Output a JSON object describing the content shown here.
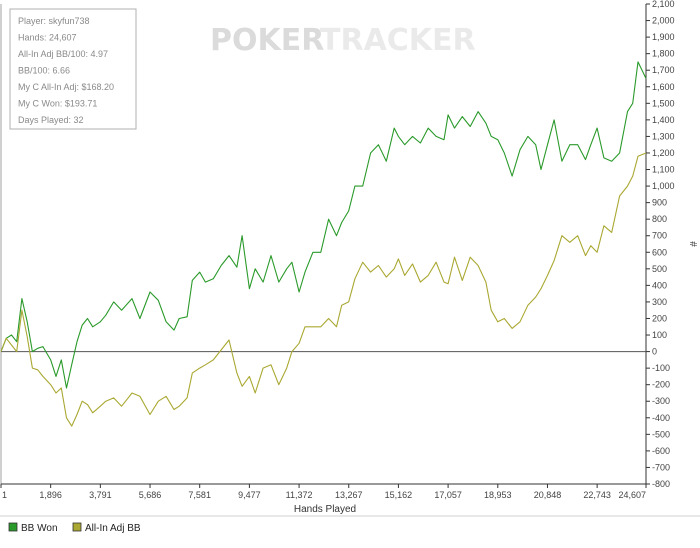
{
  "watermark": {
    "brand_left": "POKER",
    "brand_right": "TRACKER"
  },
  "stats_box": {
    "lines": [
      "Player: skyfun738",
      "Hands: 24,607",
      "All-In Adj BB/100: 4.97",
      "BB/100: 6.66",
      "My C All-In Adj: $168.20",
      "My C Won: $193.71",
      "Days Played: 32"
    ]
  },
  "legend": {
    "items": [
      {
        "label": "BB Won",
        "color": "#2a9a2a"
      },
      {
        "label": "All-In Adj BB",
        "color": "#aaa832"
      }
    ]
  },
  "chart_data": {
    "type": "line",
    "title": "",
    "xlabel": "Hands Played",
    "ylabel": "#",
    "xlim": [
      1,
      24607
    ],
    "ylim": [
      -800,
      2100
    ],
    "x_ticks": [
      1,
      1896,
      3791,
      5686,
      7581,
      9477,
      11372,
      13267,
      15162,
      17057,
      18953,
      20848,
      22743,
      24607
    ],
    "x_tick_labels": [
      "1",
      "1,896",
      "3,791",
      "5,686",
      "7,581",
      "9,477",
      "11,372",
      "13,267",
      "15,162",
      "17,057",
      "18,953",
      "20,848",
      "22,743",
      "24,607"
    ],
    "y_ticks": [
      -800,
      -700,
      -600,
      -500,
      -400,
      -300,
      -200,
      -100,
      0,
      100,
      200,
      300,
      400,
      500,
      600,
      700,
      800,
      900,
      1000,
      1100,
      1200,
      1300,
      1400,
      1500,
      1600,
      1700,
      1800,
      1900,
      2000,
      2100
    ],
    "y_tick_labels": [
      "-800",
      "-700",
      "-600",
      "-500",
      "-400",
      "-300",
      "-200",
      "-100",
      "0",
      "100",
      "200",
      "300",
      "400",
      "500",
      "600",
      "700",
      "800",
      "900",
      "1,000",
      "1,100",
      "1,200",
      "1,300",
      "1,400",
      "1,500",
      "1,600",
      "1,700",
      "1,800",
      "1,900",
      "2,000",
      "2,100"
    ],
    "grid": false,
    "legend_position": "bottom-left",
    "series": [
      {
        "name": "BB Won",
        "color": "#2a9a2a",
        "x": [
          1,
          200,
          400,
          600,
          800,
          1000,
          1200,
          1400,
          1600,
          1896,
          2100,
          2300,
          2500,
          2700,
          2900,
          3100,
          3300,
          3500,
          3791,
          4000,
          4300,
          4600,
          5000,
          5300,
          5686,
          6000,
          6300,
          6600,
          6800,
          7100,
          7300,
          7581,
          7800,
          8100,
          8400,
          8700,
          9000,
          9200,
          9477,
          9700,
          10000,
          10300,
          10600,
          10900,
          11100,
          11372,
          11600,
          11900,
          12200,
          12500,
          12800,
          13000,
          13267,
          13500,
          13800,
          14100,
          14400,
          14700,
          15000,
          15162,
          15400,
          15700,
          16000,
          16300,
          16600,
          16900,
          17057,
          17300,
          17600,
          17900,
          18200,
          18500,
          18700,
          18953,
          19200,
          19500,
          19800,
          20100,
          20400,
          20600,
          20848,
          21100,
          21400,
          21700,
          22000,
          22300,
          22500,
          22743,
          23000,
          23300,
          23600,
          23900,
          24100,
          24300,
          24607
        ],
        "y": [
          0,
          80,
          100,
          60,
          320,
          180,
          0,
          20,
          30,
          -50,
          -150,
          -50,
          -220,
          -80,
          60,
          160,
          200,
          150,
          180,
          220,
          300,
          250,
          320,
          200,
          360,
          310,
          180,
          130,
          200,
          210,
          430,
          480,
          420,
          440,
          520,
          580,
          510,
          700,
          380,
          500,
          420,
          580,
          420,
          500,
          540,
          360,
          480,
          600,
          600,
          800,
          700,
          780,
          850,
          1000,
          1000,
          1200,
          1250,
          1150,
          1350,
          1300,
          1250,
          1300,
          1260,
          1350,
          1300,
          1280,
          1430,
          1350,
          1420,
          1360,
          1450,
          1380,
          1300,
          1280,
          1200,
          1060,
          1220,
          1300,
          1250,
          1100,
          1250,
          1400,
          1150,
          1250,
          1250,
          1160,
          1250,
          1350,
          1170,
          1150,
          1200,
          1450,
          1500,
          1750,
          1650
        ]
      },
      {
        "name": "All-In Adj BB",
        "color": "#aaa832",
        "x": [
          1,
          200,
          400,
          600,
          800,
          1000,
          1200,
          1400,
          1600,
          1896,
          2100,
          2300,
          2500,
          2700,
          2900,
          3100,
          3300,
          3500,
          3791,
          4000,
          4300,
          4600,
          5000,
          5300,
          5686,
          6000,
          6300,
          6600,
          6800,
          7100,
          7300,
          7581,
          7800,
          8100,
          8400,
          8700,
          9000,
          9200,
          9477,
          9700,
          10000,
          10300,
          10600,
          10900,
          11100,
          11372,
          11600,
          11900,
          12200,
          12500,
          12800,
          13000,
          13267,
          13500,
          13800,
          14100,
          14400,
          14700,
          15000,
          15162,
          15400,
          15700,
          16000,
          16300,
          16600,
          16900,
          17057,
          17300,
          17600,
          17900,
          18200,
          18500,
          18700,
          18953,
          19200,
          19500,
          19800,
          20100,
          20400,
          20600,
          20848,
          21100,
          21400,
          21700,
          22000,
          22300,
          22500,
          22743,
          23000,
          23300,
          23600,
          23900,
          24100,
          24300,
          24607
        ],
        "y": [
          0,
          80,
          40,
          0,
          250,
          90,
          -100,
          -110,
          -150,
          -200,
          -250,
          -220,
          -400,
          -450,
          -380,
          -300,
          -320,
          -370,
          -330,
          -300,
          -280,
          -330,
          -250,
          -270,
          -380,
          -300,
          -270,
          -350,
          -330,
          -280,
          -130,
          -100,
          -80,
          -50,
          10,
          70,
          -130,
          -210,
          -150,
          -250,
          -100,
          -80,
          -200,
          -100,
          0,
          50,
          150,
          150,
          150,
          200,
          150,
          280,
          300,
          440,
          540,
          480,
          520,
          450,
          500,
          560,
          460,
          530,
          420,
          460,
          540,
          420,
          410,
          570,
          430,
          570,
          520,
          420,
          250,
          180,
          200,
          140,
          180,
          280,
          330,
          380,
          460,
          550,
          700,
          660,
          700,
          580,
          640,
          600,
          760,
          720,
          940,
          1000,
          1060,
          1180,
          1200
        ]
      }
    ]
  }
}
